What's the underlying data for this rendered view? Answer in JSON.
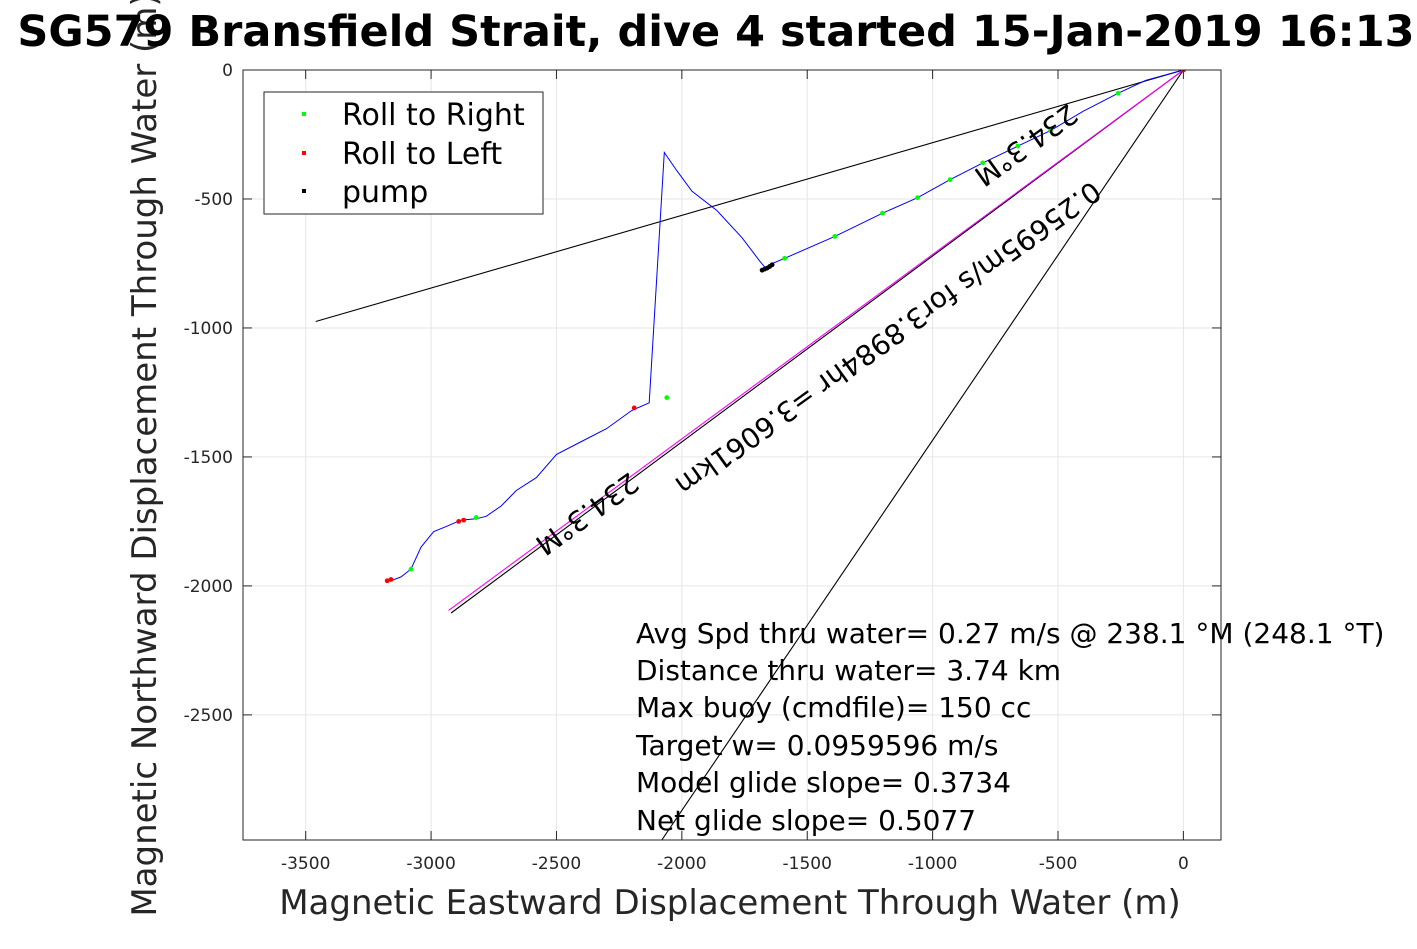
{
  "chart_data": {
    "type": "line",
    "title": "SG579 Bransfield Strait, dive 4 started 15-Jan-2019 16:13",
    "xlabel": "Magnetic Eastward Displacement Through Water (m)",
    "ylabel": "Magnetic Northward Displacement Through Water (m)",
    "xlim": [
      -3750,
      150
    ],
    "ylim": [
      -2985,
      0
    ],
    "grid": true,
    "xticks": [
      -3500,
      -3000,
      -2500,
      -2000,
      -1500,
      -1000,
      -500,
      0
    ],
    "xtick_labels": [
      "-3500",
      "-3000",
      "-2500",
      "-2000",
      "-1500",
      "-1000",
      "-500",
      "0"
    ],
    "yticks": [
      0,
      -500,
      -1000,
      -1500,
      -2000,
      -2500
    ],
    "ytick_labels": [
      "0",
      "-500",
      "-1000",
      "-1500",
      "-2000",
      "-2500"
    ],
    "legend": {
      "placement": "top-left",
      "entries": [
        {
          "label": "Roll to Right",
          "color": "#00ff00"
        },
        {
          "label": "Roll to Left",
          "color": "#ff0000"
        },
        {
          "label": "pump",
          "color": "#000000"
        }
      ]
    },
    "series": [
      {
        "style": "line",
        "color": "#0000ff",
        "x": [
          0,
          -150,
          -260,
          -400,
          -530,
          -660,
          -800,
          -930,
          -1060,
          -1200,
          -1390,
          -1590,
          -1640,
          -1660,
          -1690,
          -1760,
          -1860,
          -1960,
          -2020,
          -2070,
          -2130,
          -2200,
          -2300,
          -2400,
          -2500,
          -2580,
          -2660,
          -2720,
          -2780,
          -2820,
          -2880,
          -2940,
          -2990,
          -3040,
          -3080,
          -3120,
          -3160,
          -3170
        ],
        "y": [
          0,
          -40,
          -90,
          -160,
          -235,
          -295,
          -360,
          -425,
          -495,
          -555,
          -645,
          -730,
          -750,
          -775,
          -740,
          -650,
          -545,
          -470,
          -390,
          -320,
          -1290,
          -1320,
          -1390,
          -1440,
          -1490,
          -1580,
          -1630,
          -1690,
          -1730,
          -1740,
          -1745,
          -1770,
          -1790,
          -1850,
          -1935,
          -1965,
          -1980,
          -1980
        ]
      },
      {
        "name": "Roll to Right",
        "style": "points",
        "color": "#00ff00",
        "x": [
          -260,
          -530,
          -660,
          -800,
          -930,
          -1060,
          -1200,
          -1390,
          -1590,
          -2060,
          -2820,
          -3080
        ],
        "y": [
          -90,
          -235,
          -295,
          -360,
          -425,
          -495,
          -555,
          -645,
          -730,
          -1270,
          -1735,
          -1935
        ]
      },
      {
        "name": "Roll to Left",
        "style": "points",
        "color": "#ff0000",
        "x": [
          0,
          -2190,
          -2870,
          -2890,
          -3160,
          -3175
        ],
        "y": [
          0,
          -1310,
          -1745,
          -1750,
          -1975,
          -1980
        ]
      },
      {
        "name": "pump",
        "style": "points",
        "color": "#000000",
        "x": [
          -1640,
          -1650,
          -1660,
          -1670,
          -1680
        ],
        "y": [
          -755,
          -762,
          -768,
          -772,
          -776
        ]
      },
      {
        "style": "line",
        "color": "#000000",
        "x": [
          0,
          -3460
        ],
        "y": [
          0,
          -975
        ]
      },
      {
        "style": "line",
        "color": "#000000",
        "x": [
          0,
          -2080
        ],
        "y": [
          0,
          -2985
        ]
      },
      {
        "style": "line",
        "color": "#000000",
        "x": [
          0,
          -2920
        ],
        "y": [
          0,
          -2105
        ]
      },
      {
        "style": "line",
        "color": "#ff00ff",
        "x": [
          0,
          -2930
        ],
        "y": [
          0,
          -2095
        ]
      }
    ],
    "annotations": [
      {
        "text": "234.3°M",
        "x": -2400,
        "y": -1690,
        "rotation_deg": 144.3
      },
      {
        "text": "234.3°M",
        "x": -650,
        "y": -260,
        "rotation_deg": 144.3
      },
      {
        "text": "0.25695m/s for3.8984hr =3.6061km",
        "x": -1200,
        "y": -1010,
        "rotation_deg": 144.3
      }
    ],
    "stats": [
      "Avg Spd thru water=  0.27 m/s @ 238.1 °M (248.1 °T)",
      "Distance thru water=  3.74 km",
      "Max buoy (cmdfile)= 150 cc",
      "Target w= 0.0959596 m/s",
      "Model glide slope= 0.3734",
      "Net glide slope= 0.5077"
    ]
  }
}
